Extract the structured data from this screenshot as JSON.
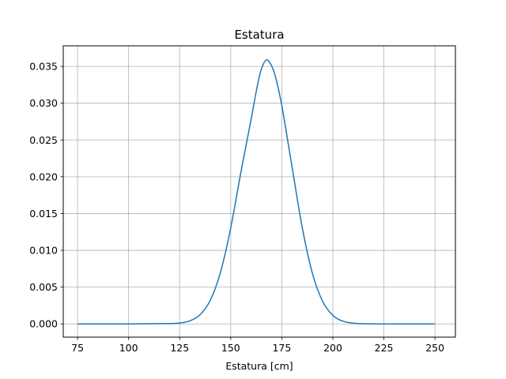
{
  "chart_data": {
    "type": "line",
    "title": "Estatura",
    "xlabel": "Estatura [cm]",
    "ylabel": "",
    "xlim": [
      68,
      260
    ],
    "ylim": [
      -0.0018,
      0.0378
    ],
    "xticks": [
      75,
      100,
      125,
      150,
      175,
      200,
      225,
      250
    ],
    "xtick_labels": [
      "75",
      "100",
      "125",
      "150",
      "175",
      "200",
      "225",
      "250"
    ],
    "yticks": [
      0.0,
      0.005,
      0.01,
      0.015,
      0.02,
      0.025,
      0.03,
      0.035
    ],
    "ytick_labels": [
      "0.000",
      "0.005",
      "0.010",
      "0.015",
      "0.020",
      "0.025",
      "0.030",
      "0.035"
    ],
    "grid": true,
    "legend": false,
    "series_color": "#1f77b4",
    "series": [
      {
        "x": [
          75,
          100,
          120,
          125,
          130,
          135,
          140,
          145,
          150,
          155,
          160,
          163,
          165,
          167.5,
          170,
          172,
          175,
          180,
          185,
          190,
          195,
          200,
          205,
          210,
          215,
          225,
          250
        ],
        "y": [
          0.0,
          0.0,
          5e-05,
          0.00012,
          0.00042,
          0.00126,
          0.00322,
          0.00703,
          0.01305,
          0.02065,
          0.02784,
          0.03231,
          0.03463,
          0.03589,
          0.03507,
          0.03349,
          0.02969,
          0.02138,
          0.01311,
          0.00686,
          0.00306,
          0.00116,
          0.00037,
          0.0001,
          2e-05,
          0.0,
          0.0
        ]
      }
    ]
  }
}
